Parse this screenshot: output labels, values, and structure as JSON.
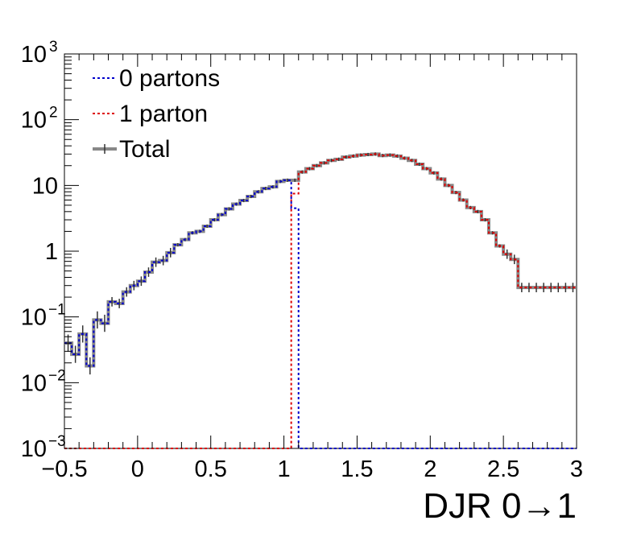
{
  "chart_data": {
    "type": "line",
    "title": "",
    "xlabel": "DJR 0→1",
    "ylabel": "",
    "xlim": [
      -0.5,
      3
    ],
    "ylim": [
      0.001,
      1000
    ],
    "yscale": "log",
    "grid": false,
    "legend_position": "top-left",
    "x_ticks": [
      "−0.5",
      "0",
      "0.5",
      "1",
      "1.5",
      "2",
      "2.5",
      "3"
    ],
    "y_ticks": [
      {
        "base": "10",
        "exp": "3"
      },
      {
        "base": "10",
        "exp": "2"
      },
      {
        "base": "10",
        "exp": ""
      },
      {
        "base": "1",
        "exp": ""
      },
      {
        "base": "10",
        "exp": "−1"
      },
      {
        "base": "10",
        "exp": "−2"
      },
      {
        "base": "10",
        "exp": "−3"
      }
    ],
    "bin_edges_start": -0.5,
    "bin_width": 0.05,
    "series": [
      {
        "name": "0 partons",
        "color": "#0000cc",
        "style": "dotted",
        "values": [
          0.04,
          0.027,
          0.055,
          0.018,
          0.09,
          0.08,
          0.17,
          0.16,
          0.24,
          0.3,
          0.35,
          0.48,
          0.68,
          0.72,
          0.95,
          1.25,
          1.5,
          1.9,
          2.0,
          2.4,
          3.0,
          3.6,
          4.4,
          5.2,
          5.9,
          6.8,
          8.0,
          9.0,
          9.5,
          11.5,
          12.0,
          4.5,
          0.001,
          0.001,
          0.001,
          0.001,
          0.001,
          0.001,
          0.001,
          0.001,
          0.001,
          0.001,
          0.001,
          0.001,
          0.001,
          0.001,
          0.001,
          0.001,
          0.001,
          0.001,
          0.001,
          0.001,
          0.001,
          0.001,
          0.001,
          0.001,
          0.001,
          0.001,
          0.001,
          0.001,
          0.001,
          0.001,
          0.001,
          0.001,
          0.001,
          0.001,
          0.001,
          0.001,
          0.001,
          0.001
        ]
      },
      {
        "name": "1 parton",
        "color": "#dd0000",
        "style": "dotted",
        "values": [
          0.001,
          0.001,
          0.001,
          0.001,
          0.001,
          0.001,
          0.001,
          0.001,
          0.001,
          0.001,
          0.001,
          0.001,
          0.001,
          0.001,
          0.001,
          0.001,
          0.001,
          0.001,
          0.001,
          0.001,
          0.001,
          0.001,
          0.001,
          0.001,
          0.001,
          0.001,
          0.001,
          0.001,
          0.001,
          0.001,
          0.001,
          7.5,
          16.0,
          18.0,
          20.0,
          22.0,
          24.0,
          25.0,
          27.0,
          28.0,
          29.0,
          29.5,
          30.0,
          28.5,
          29.0,
          28.0,
          26.0,
          24.0,
          21.0,
          18.0,
          15.5,
          12.5,
          10.0,
          7.8,
          6.0,
          4.6,
          4.0,
          3.0,
          1.9,
          1.2,
          0.9,
          0.75,
          0.28,
          0.28,
          0.28,
          0.28,
          0.28,
          0.28,
          0.28,
          0.28
        ]
      },
      {
        "name": "Total",
        "color": "#888888",
        "style": "solid",
        "values": [
          0.04,
          0.027,
          0.055,
          0.018,
          0.09,
          0.08,
          0.17,
          0.16,
          0.24,
          0.3,
          0.35,
          0.48,
          0.68,
          0.72,
          0.95,
          1.25,
          1.5,
          1.9,
          2.0,
          2.4,
          3.0,
          3.6,
          4.4,
          5.2,
          5.9,
          6.8,
          8.0,
          9.0,
          9.5,
          11.5,
          12.0,
          12.0,
          16.0,
          18.0,
          20.0,
          22.0,
          24.0,
          25.0,
          27.0,
          28.0,
          29.0,
          29.5,
          30.0,
          28.5,
          29.0,
          28.0,
          26.0,
          24.0,
          21.0,
          18.0,
          15.5,
          12.5,
          10.0,
          7.8,
          6.0,
          4.6,
          4.0,
          3.0,
          1.9,
          1.2,
          0.9,
          0.75,
          0.28,
          0.28,
          0.28,
          0.28,
          0.28,
          0.28,
          0.28,
          0.28
        ]
      }
    ]
  }
}
